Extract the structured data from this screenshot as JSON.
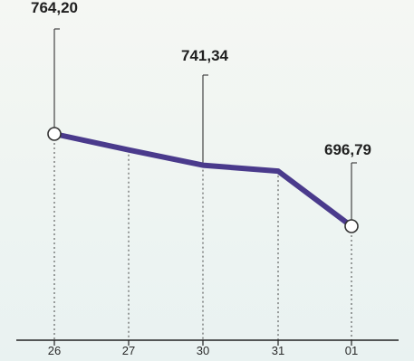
{
  "chart_data": {
    "type": "line",
    "categories": [
      "26",
      "27",
      "30",
      "31",
      "01"
    ],
    "series": [
      {
        "values": [
          764.2,
          752.5,
          741.34,
          737.0,
          696.79
        ]
      }
    ],
    "data_labels": [
      {
        "index": 0,
        "text": "764,20"
      },
      {
        "index": 2,
        "text": "741,34"
      },
      {
        "index": 4,
        "text": "696,79"
      }
    ],
    "title": "",
    "xlabel": "",
    "ylabel": "",
    "grid": "vertical dotted guides at each category",
    "legend": "none",
    "colors": {
      "line": "#4a3a8c",
      "marker_fill": "#ffffff",
      "marker_stroke": "#333333",
      "axis": "#222222"
    }
  }
}
